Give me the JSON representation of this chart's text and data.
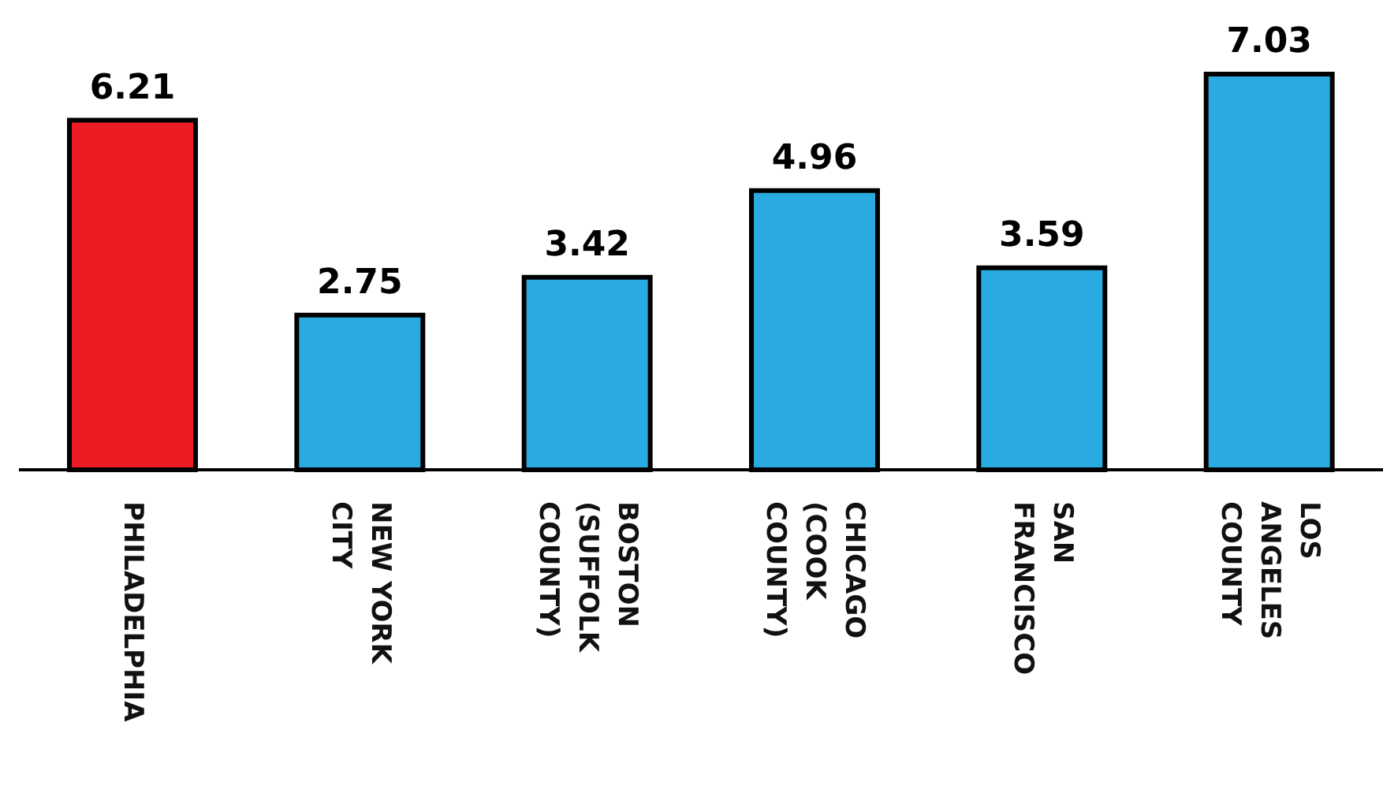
{
  "chart_data": {
    "type": "bar",
    "categories": [
      "PHILADELPHIA",
      "NEW YORK CITY",
      "BOSTON (SUFFOLK COUNTY)",
      "CHICAGO (COOK COUNTY)",
      "SAN FRANCISCO",
      "LOS ANGELES COUNTY"
    ],
    "values": [
      6.21,
      2.75,
      3.42,
      4.96,
      3.59,
      7.03
    ],
    "colors": [
      "#ed1c24",
      "#29abe2",
      "#29abe2",
      "#29abe2",
      "#29abe2",
      "#29abe2"
    ],
    "data_labels": true
  }
}
